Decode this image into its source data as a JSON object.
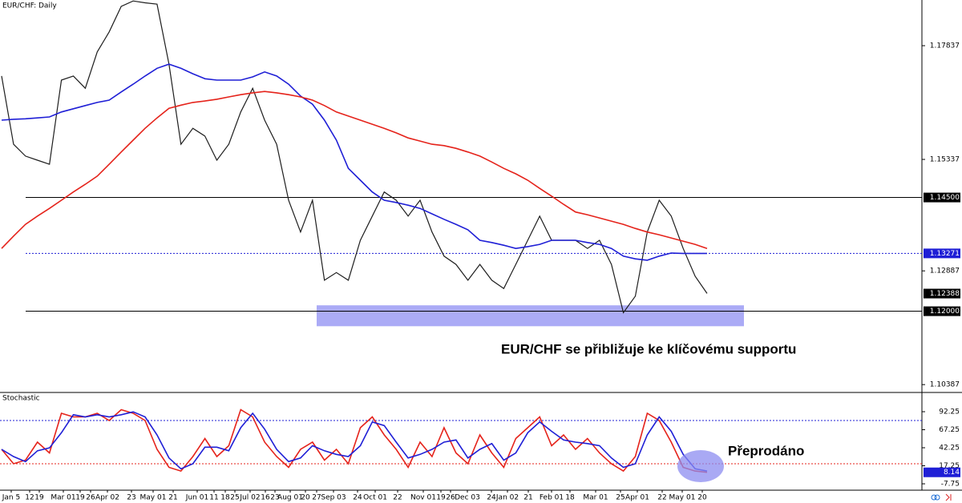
{
  "chart_data": [
    {
      "type": "line",
      "title": "EUR/CHF: Daily",
      "ylim": [
        1.10214,
        1.18841
      ],
      "yticks": [
        1.17837,
        1.15337,
        1.12887,
        1.10387
      ],
      "series": [
        {
          "color": "#1e1e1e",
          "values": [
            1.1717,
            1.1567,
            1.1541,
            1.1532,
            1.1523,
            1.1708,
            1.1717,
            1.169,
            1.177,
            1.1814,
            1.187,
            1.1882,
            1.1878,
            1.1875,
            1.1743,
            1.1567,
            1.1602,
            1.1585,
            1.1532,
            1.1567,
            1.1638,
            1.169,
            1.162,
            1.1567,
            1.1444,
            1.1374,
            1.1444,
            1.1268,
            1.1285,
            1.1268,
            1.1356,
            1.1409,
            1.1462,
            1.1444,
            1.1409,
            1.1444,
            1.1374,
            1.1321,
            1.1303,
            1.1268,
            1.1303,
            1.1268,
            1.125,
            1.1303,
            1.1356,
            1.1409,
            1.1356,
            1.1356,
            1.1356,
            1.1338,
            1.1356,
            1.1303,
            1.1197,
            1.1233,
            1.1374,
            1.1444,
            1.1409,
            1.1338,
            1.1277,
            1.1239
          ]
        },
        {
          "color": "#1f1fd6",
          "values": [
            1.162,
            1.1622,
            1.1623,
            1.1625,
            1.1627,
            1.1638,
            1.1645,
            1.1652,
            1.1659,
            1.1664,
            1.1682,
            1.1699,
            1.1717,
            1.1734,
            1.1743,
            1.1734,
            1.1722,
            1.1711,
            1.1708,
            1.1708,
            1.1708,
            1.1715,
            1.1726,
            1.1717,
            1.1699,
            1.1673,
            1.1655,
            1.162,
            1.1576,
            1.1514,
            1.1488,
            1.1462,
            1.1444,
            1.1439,
            1.1433,
            1.1426,
            1.1414,
            1.1402,
            1.1391,
            1.1379,
            1.1356,
            1.1351,
            1.1345,
            1.1338,
            1.1342,
            1.1347,
            1.1356,
            1.1356,
            1.1356,
            1.1351,
            1.1347,
            1.1338,
            1.1321,
            1.1315,
            1.1312,
            1.1321,
            1.1328,
            1.1327,
            1.1327,
            1.1327
          ]
        },
        {
          "color": "#e5231b",
          "values": [
            1.1338,
            1.1365,
            1.1391,
            1.1409,
            1.1426,
            1.1444,
            1.1462,
            1.1479,
            1.1497,
            1.1523,
            1.155,
            1.1576,
            1.1602,
            1.1625,
            1.1646,
            1.1653,
            1.1659,
            1.1662,
            1.1666,
            1.1671,
            1.1676,
            1.168,
            1.1683,
            1.168,
            1.1676,
            1.1671,
            1.1664,
            1.1652,
            1.1638,
            1.1629,
            1.162,
            1.1611,
            1.1602,
            1.1592,
            1.1581,
            1.1574,
            1.1567,
            1.1564,
            1.1558,
            1.155,
            1.1541,
            1.1528,
            1.1514,
            1.1502,
            1.1488,
            1.147,
            1.1453,
            1.1435,
            1.1418,
            1.1412,
            1.1405,
            1.1398,
            1.1391,
            1.1382,
            1.1374,
            1.1368,
            1.1361,
            1.1354,
            1.1347,
            1.1338
          ]
        }
      ],
      "levels": [
        {
          "value": 1.145,
          "label": "1.14500",
          "style": "solid",
          "color": "#000000"
        },
        {
          "value": 1.13271,
          "label": "1.13271",
          "style": "dotted",
          "color": "#1f1fd6"
        },
        {
          "value": 1.12,
          "label": "1.12000",
          "style": "solid",
          "color": "#000000"
        }
      ],
      "last_price": {
        "value": 1.12388,
        "label": "1.12388"
      },
      "support_zone": [
        1.1167,
        1.1213
      ],
      "annotation": "EUR/CHF se přibližuje ke klíčovému supportu"
    },
    {
      "type": "line",
      "title": "Stochastic",
      "ylim": [
        -16.6,
        118.9
      ],
      "yticks": [
        92.25,
        67.25,
        42.25,
        17.25,
        -7.75
      ],
      "series": [
        {
          "color": "#e5231b",
          "values": [
            40,
            20,
            25,
            50,
            35,
            90,
            85,
            85,
            90,
            80,
            95,
            90,
            80,
            40,
            15,
            10,
            30,
            55,
            30,
            45,
            95,
            85,
            50,
            30,
            15,
            40,
            50,
            25,
            40,
            20,
            70,
            85,
            60,
            40,
            15,
            50,
            30,
            70,
            35,
            20,
            60,
            35,
            15,
            55,
            70,
            85,
            45,
            60,
            40,
            55,
            35,
            20,
            10,
            30,
            90,
            80,
            50,
            15,
            10,
            8.14
          ]
        },
        {
          "color": "#1f1fd6",
          "values": [
            40,
            30,
            23,
            38,
            42,
            63,
            88,
            85,
            88,
            85,
            88,
            92,
            85,
            60,
            28,
            13,
            20,
            43,
            43,
            38,
            70,
            90,
            68,
            40,
            23,
            28,
            45,
            38,
            33,
            30,
            45,
            78,
            73,
            50,
            28,
            33,
            40,
            50,
            53,
            28,
            40,
            48,
            25,
            35,
            63,
            78,
            65,
            53,
            50,
            48,
            45,
            28,
            15,
            20,
            60,
            85,
            65,
            33,
            13,
            10
          ]
        }
      ],
      "levels": [
        {
          "value": 80,
          "color": "#1f1fd6"
        },
        {
          "value": 20,
          "color": "#e5231b"
        }
      ],
      "last": 8.14,
      "annotation": "Přeprodáno"
    }
  ],
  "time_axis": {
    "labels": [
      "Jan 5",
      "12",
      "19",
      "Mar 01",
      "19",
      "26",
      "Apr 02",
      "23",
      "May 01",
      "21",
      "Jun 01",
      "11",
      "18",
      "25",
      "Jul 02",
      "16",
      "23",
      "Aug 01",
      "20",
      "27",
      "Sep 03",
      "24",
      "Oct 01",
      "22",
      "Nov 01",
      "19",
      "26",
      "Dec 03",
      "24",
      "Jan 02",
      "21",
      "Feb 01",
      "18",
      "Mar 01",
      "25",
      "Apr 01",
      "22",
      "May 01",
      "20"
    ]
  }
}
